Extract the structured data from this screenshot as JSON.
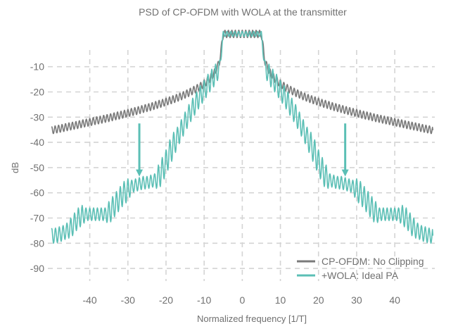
{
  "chart_data": {
    "type": "line",
    "title": "PSD of CP-OFDM with WOLA at the transmitter",
    "xlabel": "Normalized frequency [1/T]",
    "ylabel": "dB",
    "xlim": [
      -51,
      50.5
    ],
    "ylim": [
      -95,
      5
    ],
    "xticks": [
      -40,
      -30,
      -20,
      -10,
      0,
      10,
      20,
      30,
      40
    ],
    "yticks": [
      -10,
      -20,
      -30,
      -40,
      -50,
      -60,
      -70,
      -80,
      -90
    ],
    "grid": true,
    "grid_style": "dashed",
    "legend_position": "bottom-right",
    "x": [
      -50,
      -49,
      -48,
      -47,
      -46,
      -45,
      -44,
      -43,
      -42,
      -41,
      -40,
      -39,
      -38,
      -37,
      -36,
      -35,
      -34,
      -33,
      -32,
      -31,
      -30,
      -29,
      -28,
      -27,
      -26,
      -25,
      -24,
      -23,
      -22,
      -21,
      -20,
      -19,
      -18,
      -17,
      -16,
      -15,
      -14,
      -13,
      -12,
      -11,
      -10,
      -9,
      -8,
      -7,
      -6,
      -5,
      -4,
      -3,
      -2,
      -1,
      0,
      1,
      2,
      3,
      4,
      5,
      6,
      7,
      8,
      9,
      10,
      11,
      12,
      13,
      14,
      15,
      16,
      17,
      18,
      19,
      20,
      21,
      22,
      23,
      24,
      25,
      26,
      27,
      28,
      29,
      30,
      31,
      32,
      33,
      34,
      35,
      36,
      37,
      38,
      39,
      40,
      41,
      42,
      43,
      44,
      45,
      46,
      47,
      48,
      49,
      50
    ],
    "series": [
      {
        "name": "CP-OFDM: No Clipping",
        "color": "#7a7a7a",
        "values": [
          -35.2,
          -34.9,
          -34.6,
          -34.3,
          -33.9,
          -33.6,
          -33.3,
          -33.0,
          -32.6,
          -32.3,
          -32.0,
          -31.6,
          -31.3,
          -31.0,
          -30.6,
          -30.3,
          -29.9,
          -29.5,
          -29.2,
          -28.8,
          -28.4,
          -28.0,
          -27.6,
          -27.2,
          -26.7,
          -26.3,
          -25.9,
          -25.4,
          -24.9,
          -24.5,
          -23.9,
          -23.4,
          -22.9,
          -22.3,
          -21.7,
          -21.0,
          -20.3,
          -19.5,
          -18.7,
          -17.8,
          -16.7,
          -15.4,
          -13.9,
          -11.7,
          -8.2,
          3,
          3,
          3,
          3,
          3,
          3,
          3,
          3,
          3,
          3,
          3,
          -8.2,
          -11.7,
          -13.9,
          -15.4,
          -16.7,
          -17.8,
          -18.7,
          -19.5,
          -20.3,
          -21.0,
          -21.7,
          -22.3,
          -22.9,
          -23.4,
          -23.9,
          -24.5,
          -24.9,
          -25.4,
          -25.9,
          -26.3,
          -26.7,
          -27.2,
          -27.6,
          -28.0,
          -28.4,
          -28.8,
          -29.2,
          -29.5,
          -29.9,
          -30.3,
          -30.6,
          -31.0,
          -31.3,
          -31.6,
          -32.0,
          -32.3,
          -32.6,
          -33.0,
          -33.3,
          -33.6,
          -33.9,
          -34.3,
          -34.6,
          -34.9,
          -35.2
        ],
        "ripple_db": [
          1.5
        ]
      },
      {
        "name": "+WOLA: Ideal PA",
        "color": "#5bbfb5",
        "values": [
          -77,
          -77,
          -76.5,
          -76,
          -75,
          -74,
          -72,
          -70,
          -69,
          -68.5,
          -68.5,
          -68.5,
          -68.5,
          -68.5,
          -68.5,
          -68,
          -66,
          -64,
          -62,
          -60,
          -59,
          -57.5,
          -57,
          -56.5,
          -56,
          -56,
          -55.5,
          -55,
          -54,
          -51,
          -48,
          -44,
          -41,
          -38,
          -35,
          -32,
          -29,
          -26.5,
          -24,
          -21.5,
          -19.5,
          -17,
          -15,
          -13,
          -11,
          3,
          3,
          3,
          3,
          3,
          3,
          3,
          3,
          3,
          3,
          3,
          -11,
          -13,
          -15,
          -17,
          -19.5,
          -21.5,
          -24,
          -26.5,
          -29,
          -32,
          -35,
          -38,
          -41,
          -44,
          -48,
          -51,
          -54,
          -55,
          -55.5,
          -56,
          -56,
          -56.5,
          -57,
          -57.5,
          -59,
          -60,
          -62,
          -64,
          -66,
          -68,
          -68.5,
          -68.5,
          -68.5,
          -68.5,
          -68.5,
          -68.5,
          -69,
          -70,
          -72,
          -74,
          -75,
          -76,
          -76.5,
          -77,
          -77
        ],
        "ripple_db": [
          3,
          3,
          3,
          3,
          3,
          4,
          4,
          4,
          4,
          2.5,
          2.5,
          2.5,
          2.5,
          2.5,
          2.5,
          4.5,
          4.5,
          4.5,
          4.5,
          4.5,
          4.5,
          2.5,
          2.5,
          2.5,
          2.5,
          2.5,
          2.5,
          2.5,
          5,
          5,
          5,
          5,
          5,
          4,
          4,
          4,
          4,
          4,
          4,
          4,
          4,
          4,
          4,
          4,
          3,
          1,
          1,
          1,
          1,
          1,
          1,
          1,
          1,
          1,
          1,
          1,
          3,
          4,
          4,
          4,
          4,
          4,
          4,
          4,
          4,
          4,
          4,
          4,
          5,
          5,
          5,
          5,
          5,
          2.5,
          2.5,
          2.5,
          2.5,
          2.5,
          2.5,
          2.5,
          4.5,
          4.5,
          4.5,
          4.5,
          4.5,
          4.5,
          2.5,
          2.5,
          2.5,
          2.5,
          2.5,
          2.5,
          4,
          4,
          4,
          4,
          3,
          3,
          3,
          3,
          3
        ]
      }
    ],
    "annotations": [
      {
        "type": "arrow",
        "x": -27,
        "from_y": -32.5,
        "to_y": -53,
        "color": "#5bbfb5"
      },
      {
        "type": "arrow",
        "x": 27,
        "from_y": -32.5,
        "to_y": -53,
        "color": "#5bbfb5"
      }
    ]
  }
}
